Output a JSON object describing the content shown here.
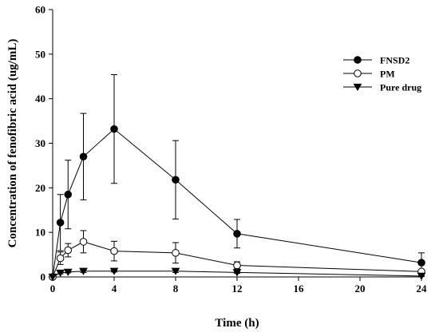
{
  "chart_data": {
    "type": "line",
    "xlabel": "Time (h)",
    "ylabel": "Concentration of fenofibric acid (ug/mL)",
    "xlim": [
      0,
      24
    ],
    "ylim": [
      0,
      60
    ],
    "x_ticks": [
      0,
      4,
      8,
      12,
      16,
      20,
      24
    ],
    "y_ticks": [
      0,
      10,
      20,
      30,
      40,
      50,
      60
    ],
    "grid": false,
    "legend_position": "top-right",
    "series": [
      {
        "name": "FNSD2",
        "marker": "filled-circle",
        "color": "#000000",
        "points": [
          {
            "x": 0,
            "y": 0,
            "err": 0
          },
          {
            "x": 0.5,
            "y": 12.2,
            "err": 6.3
          },
          {
            "x": 1,
            "y": 18.5,
            "err": 7.7
          },
          {
            "x": 2,
            "y": 27.0,
            "err": 9.7
          },
          {
            "x": 4,
            "y": 33.2,
            "err": 12.2
          },
          {
            "x": 8,
            "y": 21.8,
            "err": 8.8
          },
          {
            "x": 12,
            "y": 9.7,
            "err": 3.2
          },
          {
            "x": 24,
            "y": 3.2,
            "err": 2.2
          }
        ]
      },
      {
        "name": "PM",
        "marker": "open-circle",
        "color": "#000000",
        "points": [
          {
            "x": 0,
            "y": 0,
            "err": 0
          },
          {
            "x": 0.5,
            "y": 4.2,
            "err": 1.4
          },
          {
            "x": 1,
            "y": 6.0,
            "err": 1.5
          },
          {
            "x": 2,
            "y": 7.9,
            "err": 2.5
          },
          {
            "x": 4,
            "y": 5.8,
            "err": 2.2
          },
          {
            "x": 8,
            "y": 5.4,
            "err": 2.3
          },
          {
            "x": 12,
            "y": 2.6,
            "err": 0.8
          },
          {
            "x": 24,
            "y": 1.2,
            "err": 0.4
          }
        ]
      },
      {
        "name": "Pure drug",
        "marker": "filled-triangle-down",
        "color": "#000000",
        "points": [
          {
            "x": 0,
            "y": 0,
            "err": 0
          },
          {
            "x": 0.5,
            "y": 0.9,
            "err": 0.2
          },
          {
            "x": 1,
            "y": 1.1,
            "err": 0.2
          },
          {
            "x": 2,
            "y": 1.3,
            "err": 0.3
          },
          {
            "x": 4,
            "y": 1.3,
            "err": 0.2
          },
          {
            "x": 8,
            "y": 1.3,
            "err": 0.3
          },
          {
            "x": 12,
            "y": 1.0,
            "err": 0.2
          },
          {
            "x": 24,
            "y": 0.2,
            "err": 0.1
          }
        ]
      }
    ]
  }
}
